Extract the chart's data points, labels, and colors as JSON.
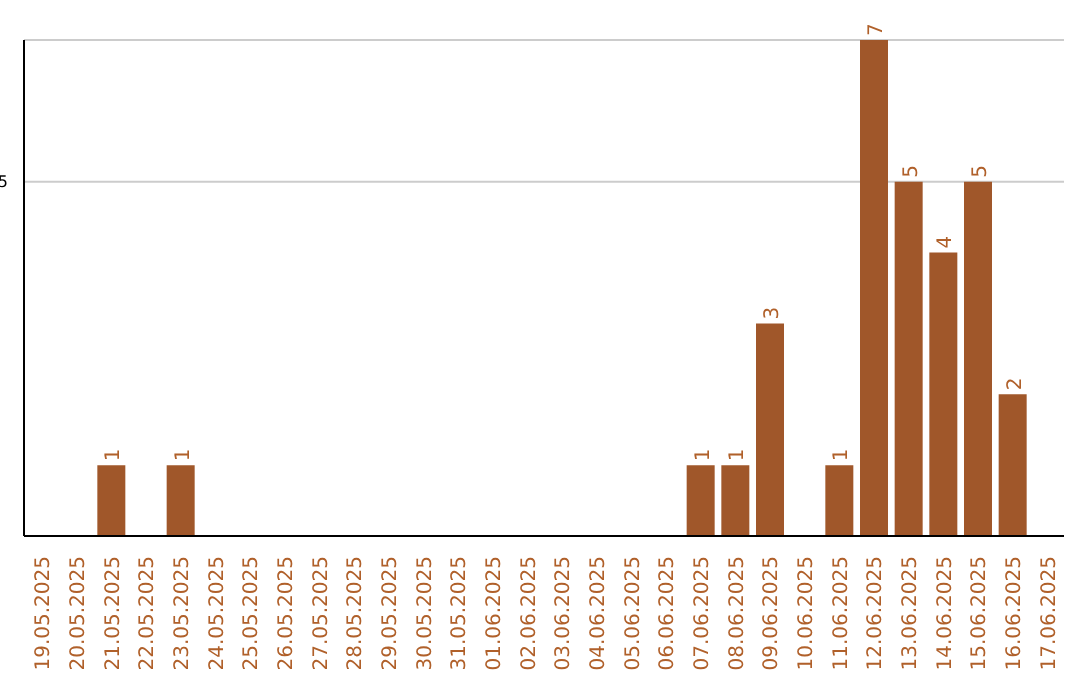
{
  "chart_data": {
    "type": "bar",
    "categories": [
      "19.05.2025",
      "20.05.2025",
      "21.05.2025",
      "22.05.2025",
      "23.05.2025",
      "24.05.2025",
      "25.05.2025",
      "26.05.2025",
      "27.05.2025",
      "28.05.2025",
      "29.05.2025",
      "30.05.2025",
      "31.05.2025",
      "01.06.2025",
      "02.06.2025",
      "03.06.2025",
      "04.06.2025",
      "05.06.2025",
      "06.06.2025",
      "07.06.2025",
      "08.06.2025",
      "09.06.2025",
      "10.06.2025",
      "11.06.2025",
      "12.06.2025",
      "13.06.2025",
      "14.06.2025",
      "15.06.2025",
      "16.06.2025",
      "17.06.2025"
    ],
    "values": [
      0,
      0,
      1,
      0,
      1,
      0,
      0,
      0,
      0,
      0,
      0,
      0,
      0,
      0,
      0,
      0,
      0,
      0,
      0,
      1,
      1,
      3,
      0,
      1,
      7,
      5,
      4,
      5,
      2,
      0
    ],
    "value_labels": [
      null,
      null,
      "1",
      null,
      "1",
      null,
      null,
      null,
      null,
      null,
      null,
      null,
      null,
      null,
      null,
      null,
      null,
      null,
      null,
      "1",
      "1",
      "3",
      null,
      "1",
      "7",
      "5",
      "4",
      "5",
      "2",
      null
    ],
    "color": "#a0572a",
    "ylim": [
      0,
      7
    ],
    "yticks": [
      5
    ],
    "grid": "y"
  }
}
